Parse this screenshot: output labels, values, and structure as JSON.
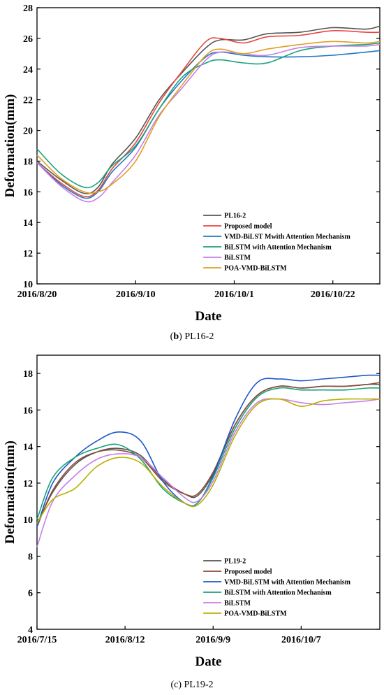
{
  "chart_data": [
    {
      "type": "line",
      "title": "",
      "xlabel": "Date",
      "ylabel": "Deformation(mm)",
      "ylim": [
        10,
        28
      ],
      "yticks": [
        10,
        12,
        14,
        16,
        18,
        20,
        22,
        24,
        26,
        28
      ],
      "xlim": [
        "2016-08-20",
        "2016-11-01"
      ],
      "xticks": [
        "2016/8/20",
        "2016/9/10",
        "2016/10/1",
        "2016/10/22"
      ],
      "xtick_dates": [
        "2016-08-20",
        "2016-09-10",
        "2016-10-01",
        "2016-10-22"
      ],
      "legend_position": "bottom-right",
      "caption_bold": "b",
      "caption_text": "PL16-2",
      "series": [
        {
          "name": "PL16-2",
          "color": "#555555",
          "x": [
            "2016-08-20",
            "2016-08-25",
            "2016-08-30",
            "2016-09-02",
            "2016-09-05",
            "2016-09-10",
            "2016-09-15",
            "2016-09-20",
            "2016-09-25",
            "2016-09-28",
            "2016-10-03",
            "2016-10-08",
            "2016-10-15",
            "2016-10-22",
            "2016-10-29",
            "2016-11-01"
          ],
          "y": [
            18.0,
            16.8,
            15.9,
            16.3,
            17.8,
            19.5,
            22.0,
            23.8,
            25.4,
            25.9,
            25.9,
            26.3,
            26.4,
            26.7,
            26.6,
            26.8
          ]
        },
        {
          "name": "Proposed model",
          "color": "#e8473f",
          "x": [
            "2016-08-20",
            "2016-08-25",
            "2016-08-30",
            "2016-09-02",
            "2016-09-05",
            "2016-09-10",
            "2016-09-15",
            "2016-09-20",
            "2016-09-25",
            "2016-09-28",
            "2016-10-03",
            "2016-10-08",
            "2016-10-15",
            "2016-10-22",
            "2016-10-29",
            "2016-11-01"
          ],
          "y": [
            17.9,
            16.6,
            15.7,
            16.1,
            17.5,
            19.2,
            21.8,
            23.9,
            25.8,
            26.0,
            25.7,
            26.1,
            26.2,
            26.5,
            26.4,
            26.4
          ]
        },
        {
          "name": "VMD-BiLST Mwith Attention Mechanism",
          "color": "#1f77c4",
          "x": [
            "2016-08-20",
            "2016-08-25",
            "2016-08-30",
            "2016-09-02",
            "2016-09-05",
            "2016-09-10",
            "2016-09-15",
            "2016-09-20",
            "2016-09-25",
            "2016-09-28",
            "2016-10-03",
            "2016-10-08",
            "2016-10-15",
            "2016-10-22",
            "2016-10-29",
            "2016-11-01"
          ],
          "y": [
            17.9,
            16.5,
            15.6,
            16.0,
            17.3,
            18.9,
            21.4,
            23.3,
            24.8,
            25.1,
            24.9,
            24.8,
            24.8,
            24.9,
            25.1,
            25.2
          ]
        },
        {
          "name": "BiLSTM with Attention Mechanism",
          "color": "#1aa37a",
          "x": [
            "2016-08-20",
            "2016-08-25",
            "2016-08-30",
            "2016-09-02",
            "2016-09-05",
            "2016-09-10",
            "2016-09-15",
            "2016-09-20",
            "2016-09-25",
            "2016-09-28",
            "2016-10-03",
            "2016-10-08",
            "2016-10-15",
            "2016-10-22",
            "2016-10-29",
            "2016-11-01"
          ],
          "y": [
            18.8,
            17.2,
            16.3,
            16.6,
            17.7,
            19.0,
            21.4,
            23.5,
            24.4,
            24.6,
            24.4,
            24.4,
            25.2,
            25.5,
            25.6,
            25.7
          ]
        },
        {
          "name": "BiLSTM",
          "color": "#c77ee8",
          "x": [
            "2016-08-20",
            "2016-08-25",
            "2016-08-30",
            "2016-09-02",
            "2016-09-05",
            "2016-09-10",
            "2016-09-15",
            "2016-09-20",
            "2016-09-25",
            "2016-09-28",
            "2016-10-03",
            "2016-10-08",
            "2016-10-15",
            "2016-10-22",
            "2016-10-29",
            "2016-11-01"
          ],
          "y": [
            17.9,
            16.4,
            15.4,
            15.6,
            16.6,
            18.4,
            21.0,
            22.8,
            24.6,
            25.1,
            25.0,
            24.9,
            25.4,
            25.5,
            25.5,
            25.6
          ]
        },
        {
          "name": "POA-VMD-BiLSTM",
          "color": "#e0a020",
          "x": [
            "2016-08-20",
            "2016-08-25",
            "2016-08-30",
            "2016-09-02",
            "2016-09-05",
            "2016-09-10",
            "2016-09-15",
            "2016-09-20",
            "2016-09-25",
            "2016-09-28",
            "2016-10-03",
            "2016-10-08",
            "2016-10-15",
            "2016-10-22",
            "2016-10-29",
            "2016-11-01"
          ],
          "y": [
            18.4,
            16.9,
            16.0,
            16.0,
            16.5,
            18.0,
            20.9,
            23.0,
            24.9,
            25.3,
            25.0,
            25.3,
            25.6,
            25.8,
            25.7,
            25.8
          ]
        }
      ]
    },
    {
      "type": "line",
      "title": "",
      "xlabel": "Date",
      "ylabel": "Deformation(mm)",
      "ylim": [
        4,
        19
      ],
      "yticks": [
        4,
        6,
        8,
        10,
        12,
        14,
        16,
        18
      ],
      "xlim": [
        "2016-07-15",
        "2016-11-01"
      ],
      "xticks": [
        "2016/7/15",
        "2016/8/12",
        "2016/9/9",
        "2016/10/7"
      ],
      "xtick_dates": [
        "2016-07-15",
        "2016-08-12",
        "2016-09-09",
        "2016-10-07"
      ],
      "legend_position": "bottom-right",
      "caption_bold": "",
      "caption_text": "(c) PL19-2",
      "series": [
        {
          "name": "PL19-2",
          "color": "#555555",
          "x": [
            "2016-07-15",
            "2016-07-20",
            "2016-07-27",
            "2016-08-03",
            "2016-08-10",
            "2016-08-17",
            "2016-08-24",
            "2016-08-31",
            "2016-09-04",
            "2016-09-09",
            "2016-09-16",
            "2016-09-23",
            "2016-09-30",
            "2016-10-07",
            "2016-10-14",
            "2016-10-21",
            "2016-10-28",
            "2016-11-01"
          ],
          "y": [
            9.7,
            11.5,
            13.0,
            13.7,
            13.9,
            13.5,
            12.2,
            11.4,
            11.3,
            12.5,
            15.2,
            16.8,
            17.3,
            17.2,
            17.3,
            17.3,
            17.4,
            17.4
          ]
        },
        {
          "name": "Proposed model",
          "color": "#8b4a3a",
          "x": [
            "2016-07-15",
            "2016-07-20",
            "2016-07-27",
            "2016-08-03",
            "2016-08-10",
            "2016-08-17",
            "2016-08-24",
            "2016-08-31",
            "2016-09-04",
            "2016-09-09",
            "2016-09-16",
            "2016-09-23",
            "2016-09-30",
            "2016-10-07",
            "2016-10-14",
            "2016-10-21",
            "2016-10-28",
            "2016-11-01"
          ],
          "y": [
            9.6,
            11.6,
            13.1,
            13.7,
            13.8,
            13.4,
            12.1,
            11.4,
            11.4,
            12.6,
            15.2,
            16.8,
            17.3,
            17.2,
            17.3,
            17.3,
            17.4,
            17.5
          ]
        },
        {
          "name": "VMD-BiLSTM with Attention Mechanism",
          "color": "#1f55c8",
          "x": [
            "2016-07-15",
            "2016-07-20",
            "2016-07-27",
            "2016-08-03",
            "2016-08-10",
            "2016-08-17",
            "2016-08-24",
            "2016-08-31",
            "2016-09-04",
            "2016-09-09",
            "2016-09-16",
            "2016-09-23",
            "2016-09-30",
            "2016-10-07",
            "2016-10-14",
            "2016-10-21",
            "2016-10-28",
            "2016-11-01"
          ],
          "y": [
            9.6,
            12.0,
            13.4,
            14.3,
            14.8,
            14.3,
            12.1,
            10.9,
            10.9,
            12.4,
            15.5,
            17.5,
            17.7,
            17.6,
            17.7,
            17.8,
            17.9,
            17.9
          ]
        },
        {
          "name": "BiLSTM with Attention Mechanism",
          "color": "#1aa37a",
          "x": [
            "2016-07-15",
            "2016-07-20",
            "2016-07-27",
            "2016-08-03",
            "2016-08-10",
            "2016-08-17",
            "2016-08-24",
            "2016-08-31",
            "2016-09-04",
            "2016-09-09",
            "2016-09-16",
            "2016-09-23",
            "2016-09-30",
            "2016-10-07",
            "2016-10-14",
            "2016-10-21",
            "2016-10-28",
            "2016-11-01"
          ],
          "y": [
            10.0,
            12.3,
            13.4,
            13.9,
            14.1,
            13.3,
            11.7,
            10.9,
            10.9,
            12.3,
            15.0,
            16.7,
            17.2,
            17.1,
            17.1,
            17.1,
            17.2,
            17.2
          ]
        },
        {
          "name": "BiLSTM",
          "color": "#c77ee8",
          "x": [
            "2016-07-15",
            "2016-07-20",
            "2016-07-27",
            "2016-08-03",
            "2016-08-10",
            "2016-08-17",
            "2016-08-24",
            "2016-08-31",
            "2016-09-04",
            "2016-09-09",
            "2016-09-16",
            "2016-09-23",
            "2016-09-30",
            "2016-10-07",
            "2016-10-14",
            "2016-10-21",
            "2016-10-28",
            "2016-11-01"
          ],
          "y": [
            8.5,
            11.0,
            12.4,
            13.3,
            13.6,
            13.4,
            12.3,
            11.2,
            11.0,
            12.1,
            14.8,
            16.4,
            16.6,
            16.4,
            16.3,
            16.4,
            16.5,
            16.6
          ]
        },
        {
          "name": "POA-VMD-BiLSTM",
          "color": "#b8b000",
          "x": [
            "2016-07-15",
            "2016-07-20",
            "2016-07-27",
            "2016-08-03",
            "2016-08-10",
            "2016-08-17",
            "2016-08-24",
            "2016-08-31",
            "2016-09-04",
            "2016-09-09",
            "2016-09-16",
            "2016-09-23",
            "2016-09-30",
            "2016-10-07",
            "2016-10-14",
            "2016-10-21",
            "2016-10-28",
            "2016-11-01"
          ],
          "y": [
            9.8,
            11.1,
            11.7,
            12.9,
            13.4,
            13.1,
            11.8,
            10.9,
            10.8,
            11.9,
            14.6,
            16.3,
            16.6,
            16.2,
            16.5,
            16.6,
            16.6,
            16.6
          ]
        }
      ]
    }
  ]
}
